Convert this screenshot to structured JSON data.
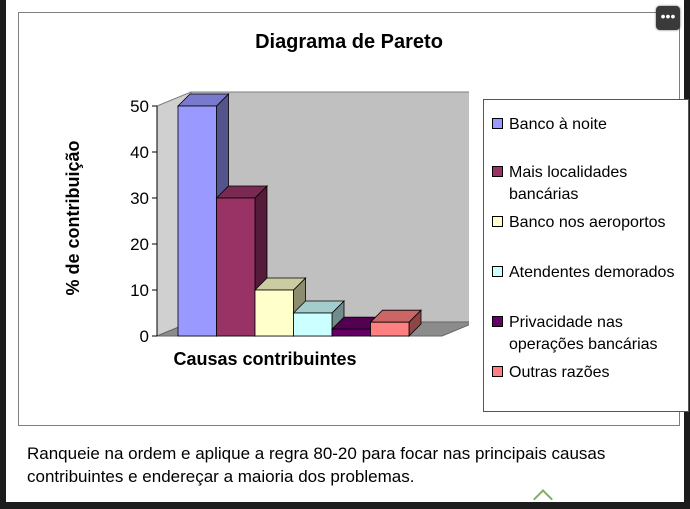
{
  "caption": "Ranqueie na ordem e aplique a regra 80-20 para focar nas principais causas contribuintes e endereçar a maioria dos problemas.",
  "menu_icon": "more-horizontal-icon",
  "chart_data": {
    "type": "bar",
    "title": "Diagrama de Pareto",
    "xlabel": "Causas contribuintes",
    "ylabel": "% de contribuição",
    "ylim": [
      0,
      50
    ],
    "yticks": [
      0,
      10,
      20,
      30,
      40,
      50
    ],
    "grid": false,
    "legend_position": "right",
    "series": [
      {
        "name": "Banco à noite",
        "value": 50,
        "color": "#9999ff"
      },
      {
        "name": "Mais localidades bancárias",
        "value": 30,
        "color": "#993366"
      },
      {
        "name": "Banco nos aeroportos",
        "value": 10,
        "color": "#ffffcc"
      },
      {
        "name": "Atendentes demorados",
        "value": 5,
        "color": "#ccffff"
      },
      {
        "name": "Privacidade nas operações bancárias",
        "value": 1.5,
        "color": "#660066"
      },
      {
        "name": "Outras razões",
        "value": 3,
        "color": "#ff8080"
      }
    ]
  }
}
